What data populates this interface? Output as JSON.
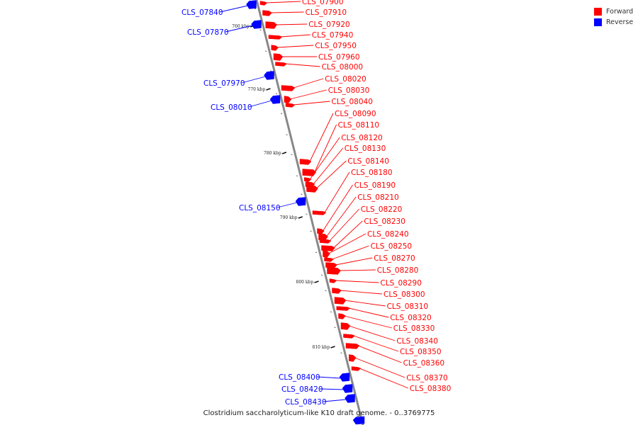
{
  "caption": "Clostridium saccharolyticum-like K10 draft genome. - 0..3769775",
  "legend": [
    {
      "label": "Forward",
      "color": "#ff0000"
    },
    {
      "label": "Reverse",
      "color": "#0000ff"
    }
  ],
  "colors": {
    "forward": "#ff0000",
    "reverse": "#0000ff",
    "backbone": "#888888",
    "tick": "#111111"
  },
  "ticks": [
    {
      "label": "760 kbp"
    },
    {
      "label": "770 kbp"
    },
    {
      "label": "780 kbp"
    },
    {
      "label": "790 kbp"
    },
    {
      "label": "800 kbp"
    },
    {
      "label": "810 kbp"
    }
  ],
  "forward_genes": [
    "CLS_07900",
    "CLS_07910",
    "CLS_07920",
    "CLS_07940",
    "CLS_07950",
    "CLS_07960",
    "CLS_08000",
    "CLS_08020",
    "CLS_08030",
    "CLS_08040",
    "CLS_08090",
    "CLS_08110",
    "CLS_08120",
    "CLS_08130",
    "CLS_08140",
    "CLS_08180",
    "CLS_08190",
    "CLS_08210",
    "CLS_08220",
    "CLS_08230",
    "CLS_08240",
    "CLS_08250",
    "CLS_08270",
    "CLS_08280",
    "CLS_08290",
    "CLS_08300",
    "CLS_08310",
    "CLS_08320",
    "CLS_08330",
    "CLS_08340",
    "CLS_08350",
    "CLS_08360",
    "CLS_08370",
    "CLS_08380"
  ],
  "reverse_genes": [
    "CLS_07840",
    "CLS_07870",
    "CLS_07970",
    "CLS_08010",
    "CLS_08150",
    "CLS_08400",
    "CLS_08420",
    "CLS_08430"
  ]
}
